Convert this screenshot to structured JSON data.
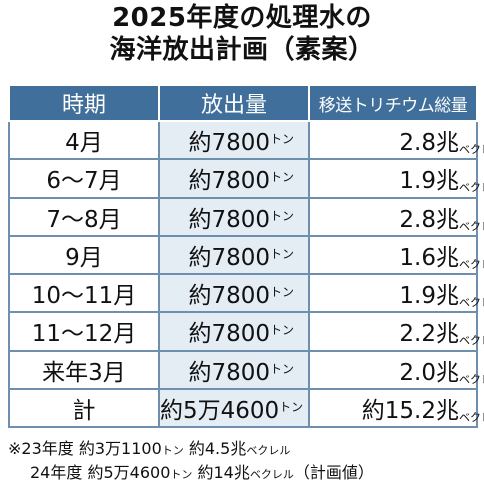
{
  "title": {
    "line1": "2025年度の処理水の",
    "line2": "海洋放出計画（素案）"
  },
  "table": {
    "headers": {
      "period": "時期",
      "amount": "放出量",
      "tritium": "移送トリチウム総量"
    },
    "units": {
      "ton": "トン",
      "bq_prefix": "兆",
      "bq": "ベクレル"
    },
    "rows": [
      {
        "period": "4月",
        "amount": "約7800",
        "tritium": "2.8"
      },
      {
        "period": "6～7月",
        "amount": "約7800",
        "tritium": "1.9"
      },
      {
        "period": "7～8月",
        "amount": "約7800",
        "tritium": "2.8"
      },
      {
        "period": "9月",
        "amount": "約7800",
        "tritium": "1.6"
      },
      {
        "period": "10～11月",
        "amount": "約7800",
        "tritium": "1.9"
      },
      {
        "period": "11～12月",
        "amount": "約7800",
        "tritium": "2.2"
      },
      {
        "period": "来年3月",
        "amount": "約7800",
        "tritium": "2.0"
      },
      {
        "period": "計",
        "amount": "約5万4600",
        "tritium": "約15.2"
      }
    ]
  },
  "notes": [
    {
      "label": "※23年度",
      "amount": "約3万1100",
      "ton": "トン",
      "tritium": "約4.5兆",
      "bq": "ベクレル",
      "suffix": ""
    },
    {
      "label": "24年度",
      "amount": "約5万4600",
      "ton": "トン",
      "tritium": "約14兆",
      "bq": "ベクレル",
      "suffix": "（計画値）"
    }
  ]
}
